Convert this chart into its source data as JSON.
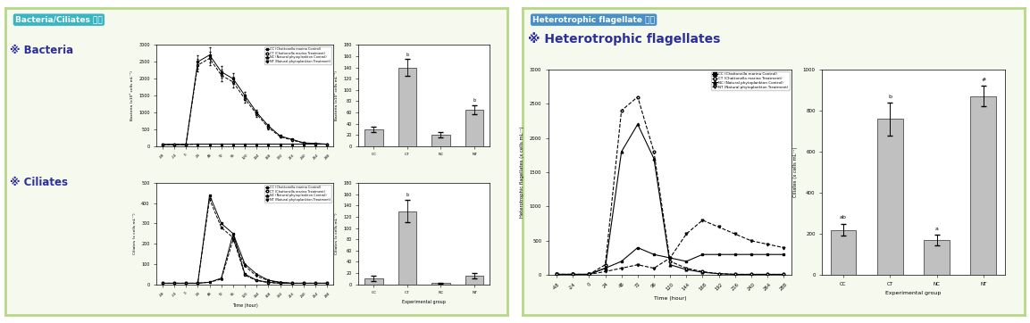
{
  "panel1_title": "Bacteria/Ciliates 댠화",
  "panel2_title": "Heterotrophic flagellate 변화",
  "bacteria_section_title": "※ Bacteria",
  "ciliates_section_title": "※ Ciliates",
  "flagellates_section_title": "※ Heterotrophic flagellates",
  "time_points": [
    -48,
    -24,
    0,
    24,
    48,
    72,
    96,
    120,
    144,
    168,
    192,
    216,
    240,
    264,
    288
  ],
  "bacteria_CC": [
    50,
    50,
    50,
    2500,
    2700,
    2200,
    2000,
    1500,
    1000,
    600,
    300,
    200,
    100,
    80,
    60
  ],
  "bacteria_CT": [
    50,
    50,
    50,
    2400,
    2600,
    2100,
    1900,
    1400,
    950,
    550,
    280,
    180,
    90,
    70,
    55
  ],
  "bacteria_NC": [
    50,
    50,
    50,
    60,
    60,
    60,
    60,
    60,
    60,
    60,
    60,
    60,
    60,
    60,
    60
  ],
  "bacteria_NT": [
    50,
    50,
    50,
    60,
    60,
    60,
    60,
    60,
    60,
    60,
    60,
    60,
    60,
    60,
    60
  ],
  "bacteria_bar_groups": [
    "CC",
    "CT",
    "NC",
    "NT"
  ],
  "bacteria_bar_values": [
    30,
    140,
    20,
    65
  ],
  "bacteria_bar_errors": [
    5,
    15,
    5,
    8
  ],
  "ciliates_CC": [
    5,
    5,
    5,
    5,
    440,
    300,
    250,
    50,
    20,
    10,
    5,
    5,
    5,
    5,
    5
  ],
  "ciliates_CT": [
    5,
    5,
    5,
    5,
    420,
    280,
    230,
    45,
    18,
    8,
    5,
    5,
    5,
    5,
    5
  ],
  "ciliates_NC": [
    5,
    5,
    5,
    5,
    10,
    30,
    250,
    100,
    50,
    20,
    10,
    5,
    5,
    5,
    5
  ],
  "ciliates_NT": [
    5,
    5,
    5,
    5,
    10,
    25,
    220,
    90,
    40,
    18,
    8,
    5,
    5,
    5,
    5
  ],
  "ciliates_bar_groups": [
    "CC",
    "CT",
    "NC",
    "NT"
  ],
  "ciliates_bar_values": [
    10,
    130,
    2,
    15
  ],
  "ciliates_bar_errors": [
    5,
    20,
    1,
    5
  ],
  "flagellates_time_points": [
    -48,
    -24,
    0,
    24,
    48,
    72,
    96,
    120,
    144,
    168,
    192,
    216,
    240,
    264,
    288
  ],
  "flagellates_CC": [
    10,
    10,
    10,
    100,
    200,
    400,
    300,
    250,
    200,
    300,
    300,
    300,
    300,
    300,
    300
  ],
  "flagellates_CT": [
    10,
    10,
    10,
    150,
    2400,
    2600,
    1800,
    200,
    100,
    50,
    20,
    10,
    10,
    10,
    10
  ],
  "flagellates_NC": [
    10,
    10,
    10,
    100,
    1800,
    2200,
    1700,
    150,
    80,
    40,
    20,
    10,
    10,
    10,
    10
  ],
  "flagellates_NT": [
    10,
    10,
    10,
    50,
    100,
    150,
    100,
    250,
    600,
    800,
    700,
    600,
    500,
    450,
    400
  ],
  "flagellates_bar_groups": [
    "CC",
    "CT",
    "NC",
    "NT"
  ],
  "flagellates_bar_values": [
    220,
    760,
    170,
    870
  ],
  "flagellates_bar_errors": [
    30,
    80,
    25,
    50
  ],
  "flagellates_bar_annotations": [
    "ab",
    "b",
    "a",
    "#"
  ],
  "legend_CC": "CC (Chattonella marina Control)",
  "legend_CT": "CT (Chattonella marina Treatment)",
  "legend_NC": "NC (Natural phytoplankton Control)",
  "legend_NT": "NT (Natural phytoplankton Treatment)",
  "bacteria_ylabel": "Bacteria (x10⁶ cells mL⁻¹)",
  "bacteria_bar_ylabel": "Bacteria (x10⁶ cells mL⁻¹)",
  "ciliates_ylabel": "Ciliates (x cells mL⁻¹)",
  "ciliates_bar_ylabel": "Ciliates (x cells mL⁻¹)",
  "flagellates_ylabel": "Heterotrophic flagellates (x cells mL⁻¹)",
  "flagellates_bar_ylabel": "Ciliates (x cells mL⁻¹)",
  "xlabel_time": "Time (hour)",
  "xlabel_exp": "Experimental group",
  "panel1_bg": "#f5f9ee",
  "panel2_bg": "#f5f9ee",
  "panel1_border": "#b8d888",
  "panel2_border": "#b8d888",
  "panel1_header_bg": "#3ab5c6",
  "panel2_header_bg": "#4a90c8",
  "bar_color": "#c0c0c0"
}
